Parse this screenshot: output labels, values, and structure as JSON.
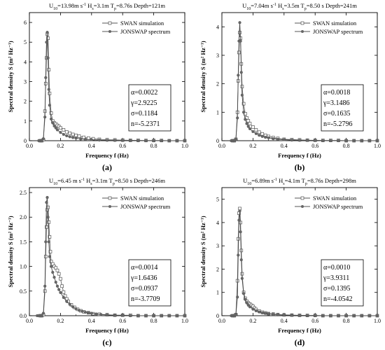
{
  "chart_data": [
    {
      "type": "line",
      "title": "U10=13.98m s-1 Hs=3.1m Tp=8.76s Depth=121m",
      "title_parts": {
        "u": "U",
        "u_sub": "10",
        "u_val": "=13.98m s",
        "u_sup": "-1",
        "h": "H",
        "h_sub": "s",
        "h_val": "=3.1m",
        "t": "T",
        "t_sub": "p",
        "t_val": "=8.76s",
        "depth": "Depth=121m"
      },
      "xlabel": "Frequency f (Hz)",
      "ylabel": "Spectral density S (m² Hz⁻¹)",
      "xlim": [
        0,
        1.0
      ],
      "ylim": [
        0,
        6.5
      ],
      "xticks": [
        "0.0",
        "0.2",
        "0.4",
        "0.6",
        "0.8",
        "1.0"
      ],
      "yticks": [
        "0",
        "1",
        "2",
        "3",
        "4",
        "5",
        "6"
      ],
      "legend": "top-right",
      "series": [
        {
          "name": "SWAN simulation",
          "marker": "open-square",
          "x": [
            0.07,
            0.08,
            0.09,
            0.1,
            0.105,
            0.11,
            0.115,
            0.12,
            0.125,
            0.13,
            0.14,
            0.15,
            0.16,
            0.17,
            0.18,
            0.19,
            0.2,
            0.22,
            0.24,
            0.26,
            0.28,
            0.3,
            0.32,
            0.35,
            0.38,
            0.41,
            0.45,
            0.5,
            0.55,
            0.6,
            0.65,
            0.7,
            0.75,
            0.8,
            0.85,
            0.9,
            0.95,
            1.0
          ],
          "y": [
            0,
            0,
            0.05,
            1.5,
            2.9,
            4.2,
            5.4,
            5.2,
            3.6,
            2.4,
            1.4,
            1.0,
            0.9,
            0.85,
            0.78,
            0.72,
            0.65,
            0.55,
            0.45,
            0.38,
            0.32,
            0.27,
            0.23,
            0.17,
            0.13,
            0.1,
            0.07,
            0.05,
            0.04,
            0.03,
            0.02,
            0.02,
            0.01,
            0.01,
            0.01,
            0,
            0,
            0
          ]
        },
        {
          "name": "JONSWAP spectrum",
          "marker": "filled-circle",
          "x": [
            0.06,
            0.07,
            0.08,
            0.09,
            0.1,
            0.105,
            0.11,
            0.115,
            0.12,
            0.125,
            0.13,
            0.14,
            0.15,
            0.16,
            0.17,
            0.18,
            0.2,
            0.22,
            0.24,
            0.26,
            0.28,
            0.3,
            0.33,
            0.36,
            0.4,
            0.45,
            0.5,
            0.55,
            0.6,
            0.65,
            0.7,
            0.75,
            0.8,
            0.85,
            0.9,
            0.95,
            1.0
          ],
          "y": [
            0,
            0,
            0,
            0.1,
            1.2,
            3.2,
            5.0,
            5.5,
            4.2,
            2.6,
            1.8,
            1.1,
            0.9,
            0.75,
            0.65,
            0.55,
            0.42,
            0.32,
            0.25,
            0.2,
            0.16,
            0.13,
            0.09,
            0.07,
            0.05,
            0.03,
            0.02,
            0.015,
            0.01,
            0.01,
            0,
            0,
            0,
            0,
            0,
            0,
            0
          ]
        }
      ],
      "params": [
        "α=0.0022",
        "γ=2.9225",
        "σ=0.1184",
        "n=-5.2371"
      ],
      "panel_label": "(a)"
    },
    {
      "type": "line",
      "title": "U10=7.04m s-1 Hs=3.5m Tp=8.50s Depth=241m",
      "title_parts": {
        "u": "U",
        "u_sub": "10",
        "u_val": "=7.04m s",
        "u_sup": "-1",
        "h": "H",
        "h_sub": "s",
        "h_val": "=3.5m",
        "t": "T",
        "t_sub": "p",
        "t_val": "=8.50 s",
        "depth": "Depth=241m"
      },
      "xlabel": "Frequency f (Hz)",
      "ylabel": "Spectral density S (m² Hz⁻¹)",
      "xlim": [
        0,
        1.0
      ],
      "ylim": [
        0,
        4.5
      ],
      "xticks": [
        "0.0",
        "0.2",
        "0.4",
        "0.6",
        "0.8",
        "1.0"
      ],
      "yticks": [
        "0",
        "1",
        "2",
        "3",
        "4"
      ],
      "legend": "top-right",
      "series": [
        {
          "name": "SWAN simulation",
          "marker": "open-square",
          "x": [
            0.07,
            0.08,
            0.09,
            0.1,
            0.105,
            0.11,
            0.115,
            0.12,
            0.125,
            0.13,
            0.14,
            0.15,
            0.16,
            0.17,
            0.18,
            0.2,
            0.22,
            0.24,
            0.26,
            0.28,
            0.3,
            0.33,
            0.36,
            0.4,
            0.45,
            0.5,
            0.55,
            0.6,
            0.65,
            0.7,
            0.75,
            0.8,
            0.85,
            0.9,
            0.95,
            1.0
          ],
          "y": [
            0,
            0,
            0.05,
            1.0,
            2.1,
            3.1,
            3.8,
            3.6,
            2.7,
            1.9,
            1.3,
            0.95,
            0.8,
            0.7,
            0.6,
            0.48,
            0.38,
            0.3,
            0.24,
            0.19,
            0.15,
            0.11,
            0.08,
            0.05,
            0.04,
            0.03,
            0.02,
            0.015,
            0.01,
            0.01,
            0.01,
            0,
            0,
            0,
            0,
            0
          ]
        },
        {
          "name": "JONSWAP spectrum",
          "marker": "filled-circle",
          "x": [
            0.06,
            0.07,
            0.08,
            0.09,
            0.1,
            0.105,
            0.11,
            0.115,
            0.12,
            0.125,
            0.13,
            0.14,
            0.15,
            0.16,
            0.17,
            0.18,
            0.2,
            0.22,
            0.24,
            0.26,
            0.28,
            0.3,
            0.33,
            0.36,
            0.4,
            0.45,
            0.5,
            0.55,
            0.6,
            0.65,
            0.7,
            0.75,
            0.8,
            0.85,
            0.9,
            0.95,
            1.0
          ],
          "y": [
            0,
            0,
            0,
            0.05,
            0.8,
            2.3,
            3.5,
            4.15,
            3.5,
            2.4,
            1.6,
            1.0,
            0.75,
            0.6,
            0.5,
            0.42,
            0.32,
            0.25,
            0.19,
            0.15,
            0.12,
            0.1,
            0.07,
            0.05,
            0.035,
            0.02,
            0.015,
            0.01,
            0.01,
            0,
            0,
            0,
            0,
            0,
            0,
            0,
            0
          ]
        }
      ],
      "params": [
        "α=0.0018",
        "γ=3.1486",
        "σ=0.1635",
        "n=-5.2796"
      ],
      "panel_label": "(b)"
    },
    {
      "type": "line",
      "title": "U10=6.45m s-1 Hs=3.1m Tp=8.50s Depth=246m",
      "title_parts": {
        "u": "U",
        "u_sub": "10",
        "u_val": "=6.45 m s",
        "u_sup": "-1",
        "h": "H",
        "h_sub": "s",
        "h_val": "=3.1m",
        "t": "T",
        "t_sub": "p",
        "t_val": "=8.50 s",
        "depth": "Depth=246m"
      },
      "xlabel": "Frequency f (Hz)",
      "ylabel": "Spectral density S (m² Hz⁻¹)",
      "xlim": [
        0,
        1.0
      ],
      "ylim": [
        0,
        2.6
      ],
      "xticks": [
        "0.0",
        "0.2",
        "0.4",
        "0.6",
        "0.8",
        "1.0"
      ],
      "yticks": [
        "0.0",
        "0.5",
        "1.0",
        "1.5",
        "2.0",
        "2.5"
      ],
      "legend": "top-right",
      "series": [
        {
          "name": "SWAN simulation",
          "marker": "open-square",
          "x": [
            0.07,
            0.08,
            0.09,
            0.1,
            0.105,
            0.11,
            0.115,
            0.12,
            0.125,
            0.13,
            0.135,
            0.14,
            0.15,
            0.16,
            0.17,
            0.18,
            0.19,
            0.2,
            0.21,
            0.22,
            0.23,
            0.24,
            0.25,
            0.27,
            0.29,
            0.31,
            0.33,
            0.35,
            0.38,
            0.41,
            0.45,
            0.5,
            0.55,
            0.6,
            0.65,
            0.7,
            0.75,
            0.8,
            0.85,
            0.9,
            0.95,
            1.0
          ],
          "y": [
            0,
            0,
            0.02,
            0.5,
            1.2,
            1.8,
            2.15,
            2.2,
            1.9,
            1.6,
            1.3,
            1.1,
            1.05,
            1.0,
            0.97,
            0.92,
            0.85,
            0.75,
            0.6,
            0.48,
            0.4,
            0.34,
            0.29,
            0.22,
            0.17,
            0.13,
            0.1,
            0.08,
            0.06,
            0.04,
            0.03,
            0.02,
            0.01,
            0.01,
            0.01,
            0,
            0,
            0,
            0,
            0,
            0,
            0
          ]
        },
        {
          "name": "JONSWAP spectrum",
          "marker": "filled-circle",
          "x": [
            0.05,
            0.06,
            0.07,
            0.08,
            0.09,
            0.1,
            0.105,
            0.11,
            0.115,
            0.12,
            0.125,
            0.13,
            0.14,
            0.15,
            0.16,
            0.17,
            0.18,
            0.19,
            0.2,
            0.22,
            0.24,
            0.26,
            0.28,
            0.3,
            0.32,
            0.34,
            0.36,
            0.38,
            0.4,
            0.43,
            0.46,
            0.5,
            0.55,
            0.6,
            0.65,
            0.7,
            0.75,
            0.8,
            0.85,
            0.9,
            0.95,
            1.0
          ],
          "y": [
            0,
            0,
            0,
            0,
            0.05,
            0.6,
            1.5,
            2.3,
            2.4,
            2.0,
            1.5,
            1.2,
            1.0,
            0.88,
            0.78,
            0.68,
            0.6,
            0.53,
            0.47,
            0.37,
            0.29,
            0.23,
            0.18,
            0.14,
            0.11,
            0.09,
            0.07,
            0.06,
            0.05,
            0.035,
            0.025,
            0.015,
            0.01,
            0.01,
            0,
            0,
            0,
            0,
            0,
            0,
            0,
            0
          ]
        }
      ],
      "params": [
        "α=0.0014",
        "γ=1.6436",
        "σ=0.0937",
        "n=-3.7709"
      ],
      "panel_label": "(c)"
    },
    {
      "type": "line",
      "title": "U10=6.89m s-1 Hs=4.1m Tp=8.76s Depth=298m",
      "title_parts": {
        "u": "U",
        "u_sub": "10",
        "u_val": "=6.89m s",
        "u_sup": "-1",
        "h": "H",
        "h_sub": "s",
        "h_val": "=4.1m",
        "t": "T",
        "t_sub": "p",
        "t_val": "=8.76s",
        "depth": "Depth=298m"
      },
      "xlabel": "Frequency f (Hz)",
      "ylabel": "Spectral density S (m² Hz⁻¹)",
      "xlim": [
        0,
        1.0
      ],
      "ylim": [
        0,
        5.5
      ],
      "xticks": [
        "0.0",
        "0.2",
        "0.4",
        "0.6",
        "0.8",
        "1.0"
      ],
      "yticks": [
        "0",
        "1",
        "2",
        "3",
        "4",
        "5"
      ],
      "legend": "top-right",
      "series": [
        {
          "name": "SWAN simulation",
          "marker": "open-square",
          "x": [
            0.07,
            0.08,
            0.09,
            0.1,
            0.105,
            0.11,
            0.115,
            0.12,
            0.125,
            0.13,
            0.14,
            0.15,
            0.16,
            0.17,
            0.18,
            0.19,
            0.2,
            0.21,
            0.22,
            0.24,
            0.26,
            0.28,
            0.3,
            0.33,
            0.36,
            0.4,
            0.45,
            0.5,
            0.55,
            0.6,
            0.65,
            0.7,
            0.75,
            0.8,
            0.85,
            0.9,
            0.95,
            1.0
          ],
          "y": [
            0,
            0,
            0.05,
            1.5,
            3.3,
            4.4,
            4.6,
            4.0,
            2.8,
            1.8,
            1.0,
            0.75,
            0.62,
            0.55,
            0.5,
            0.45,
            0.4,
            0.33,
            0.27,
            0.2,
            0.15,
            0.12,
            0.09,
            0.07,
            0.05,
            0.035,
            0.025,
            0.015,
            0.01,
            0.01,
            0,
            0,
            0,
            0,
            0,
            0,
            0,
            0
          ]
        },
        {
          "name": "JONSWAP spectrum",
          "marker": "filled-circle",
          "x": [
            0.06,
            0.07,
            0.08,
            0.09,
            0.1,
            0.105,
            0.11,
            0.115,
            0.12,
            0.125,
            0.13,
            0.14,
            0.15,
            0.16,
            0.17,
            0.18,
            0.2,
            0.22,
            0.24,
            0.26,
            0.28,
            0.3,
            0.33,
            0.36,
            0.4,
            0.45,
            0.5,
            0.55,
            0.6,
            0.65,
            0.7,
            0.75,
            0.8,
            0.85,
            0.9,
            0.95,
            1.0
          ],
          "y": [
            0,
            0,
            0,
            0.05,
            0.8,
            2.6,
            4.1,
            4.5,
            3.6,
            2.4,
            1.6,
            0.95,
            0.7,
            0.55,
            0.45,
            0.38,
            0.28,
            0.21,
            0.16,
            0.12,
            0.1,
            0.08,
            0.06,
            0.04,
            0.03,
            0.02,
            0.015,
            0.01,
            0.01,
            0,
            0,
            0,
            0,
            0,
            0,
            0,
            0
          ]
        }
      ],
      "params": [
        "α=0.0010",
        "γ=3.9311",
        "σ=0.1395",
        "n=-4.0542"
      ],
      "panel_label": "(d)"
    }
  ]
}
